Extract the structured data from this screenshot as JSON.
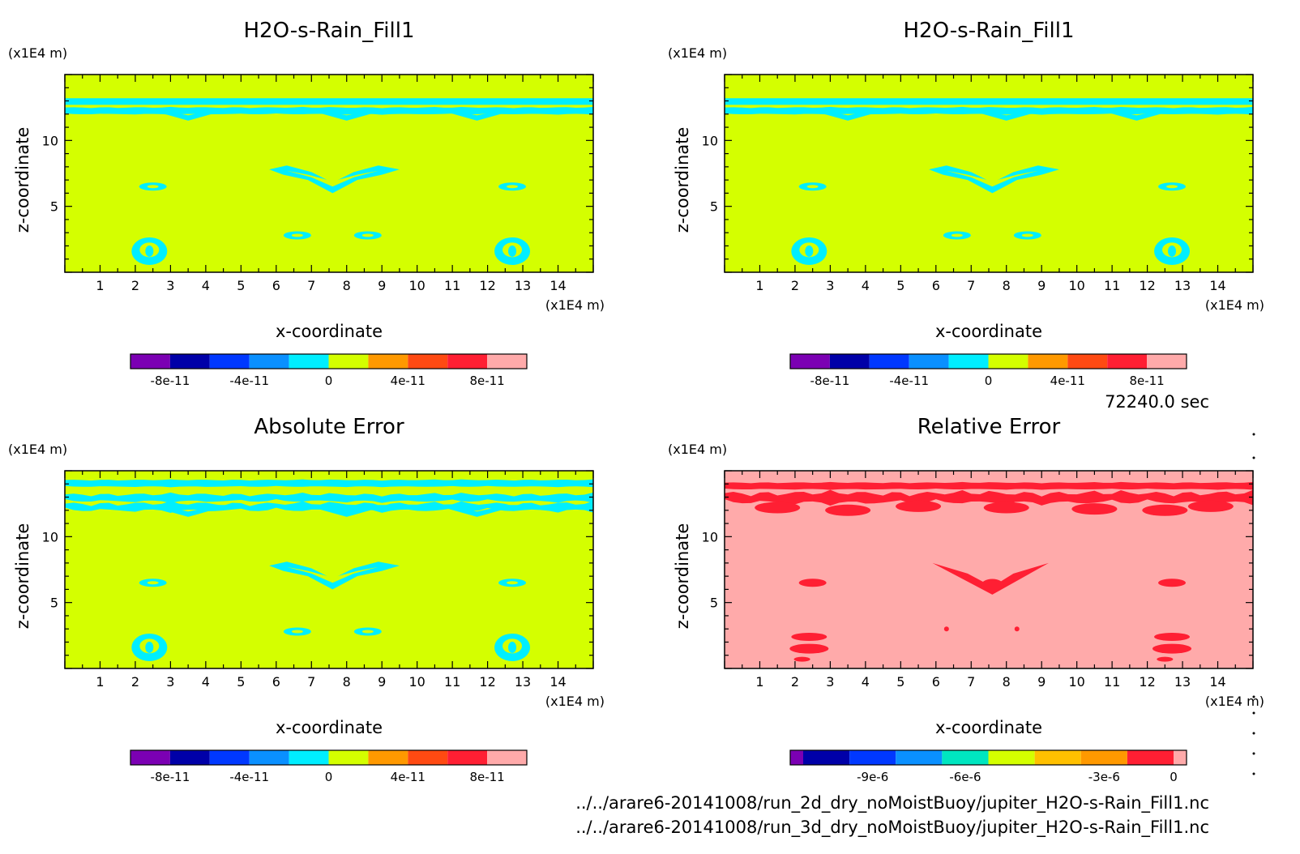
{
  "colors": {
    "purple": "#7b00b3",
    "navy": "#0000a8",
    "blue": "#0038ff",
    "azure": "#0a90ff",
    "cyan": "#00eeff",
    "lime": "#d4ff00",
    "orange": "#ff9900",
    "redorange": "#ff4a12",
    "red": "#ff1f33",
    "pink": "#ffaaaa",
    "teal": "#00e6c0",
    "gold": "#ffc000",
    "frame": "#000000"
  },
  "time_label": "72240.0 sec",
  "footer": {
    "file1": "../../arare6-20141008/run_2d_dry_noMoistBuoy/jupiter_H2O-s-Rain_Fill1.nc",
    "file2": "../../arare6-20141008/run_3d_dry_noMoistBuoy/jupiter_H2O-s-Rain_Fill1.nc"
  },
  "chart_data": [
    {
      "type": "heatmap",
      "title": "H2O-s-Rain_Fill1",
      "xlabel": "x-coordinate",
      "ylabel": "z-coordinate",
      "x_unit": "(x1E4 m)",
      "y_unit": "(x1E4 m)",
      "xlim": [
        0,
        15
      ],
      "ylim": [
        0,
        15
      ],
      "xticks": [
        "1",
        "2",
        "3",
        "4",
        "5",
        "6",
        "7",
        "8",
        "9",
        "10",
        "11",
        "12",
        "13",
        "14"
      ],
      "yticks": [
        "5",
        "10"
      ],
      "background": "lime",
      "feature": "cyan",
      "colorbar": {
        "colors": [
          "purple",
          "navy",
          "blue",
          "azure",
          "cyan",
          "lime",
          "orange",
          "redorange",
          "red",
          "pink"
        ],
        "labels": [
          "-8e-11",
          "-4e-11",
          "0",
          "4e-11",
          "8e-11"
        ]
      }
    },
    {
      "type": "heatmap",
      "title": "H2O-s-Rain_Fill1",
      "xlabel": "x-coordinate",
      "ylabel": "z-coordinate",
      "x_unit": "(x1E4 m)",
      "y_unit": "(x1E4 m)",
      "xlim": [
        0,
        15
      ],
      "ylim": [
        0,
        15
      ],
      "xticks": [
        "1",
        "2",
        "3",
        "4",
        "5",
        "6",
        "7",
        "8",
        "9",
        "10",
        "11",
        "12",
        "13",
        "14"
      ],
      "yticks": [
        "5",
        "10"
      ],
      "background": "lime",
      "feature": "cyan",
      "colorbar": {
        "colors": [
          "purple",
          "navy",
          "blue",
          "azure",
          "cyan",
          "lime",
          "orange",
          "redorange",
          "red",
          "pink"
        ],
        "labels": [
          "-8e-11",
          "-4e-11",
          "0",
          "4e-11",
          "8e-11"
        ]
      }
    },
    {
      "type": "heatmap",
      "title": "Absolute Error",
      "xlabel": "x-coordinate",
      "ylabel": "z-coordinate",
      "x_unit": "(x1E4 m)",
      "y_unit": "(x1E4 m)",
      "xlim": [
        0,
        15
      ],
      "ylim": [
        0,
        15
      ],
      "xticks": [
        "1",
        "2",
        "3",
        "4",
        "5",
        "6",
        "7",
        "8",
        "9",
        "10",
        "11",
        "12",
        "13",
        "14"
      ],
      "yticks": [
        "5",
        "10"
      ],
      "background": "lime",
      "feature": "cyan",
      "colorbar": {
        "colors": [
          "purple",
          "navy",
          "blue",
          "azure",
          "cyan",
          "lime",
          "orange",
          "redorange",
          "red",
          "pink"
        ],
        "labels": [
          "-8e-11",
          "-4e-11",
          "0",
          "4e-11",
          "8e-11"
        ]
      }
    },
    {
      "type": "heatmap",
      "title": "Relative Error",
      "xlabel": "x-coordinate",
      "ylabel": "z-coordinate",
      "x_unit": "(x1E4 m)",
      "y_unit": "(x1E4 m)",
      "xlim": [
        0,
        15
      ],
      "ylim": [
        0,
        15
      ],
      "xticks": [
        "1",
        "2",
        "3",
        "4",
        "5",
        "6",
        "7",
        "8",
        "9",
        "10",
        "11",
        "12",
        "13",
        "14"
      ],
      "yticks": [
        "5",
        "10"
      ],
      "background": "pink",
      "feature": "red",
      "colorbar": {
        "colors": [
          "purple",
          "navy",
          "blue",
          "azure",
          "teal",
          "lime",
          "gold",
          "orange",
          "red",
          "pink"
        ],
        "labels": [
          "-9e-6",
          "-6e-6",
          "-3e-6",
          "0"
        ]
      }
    }
  ]
}
